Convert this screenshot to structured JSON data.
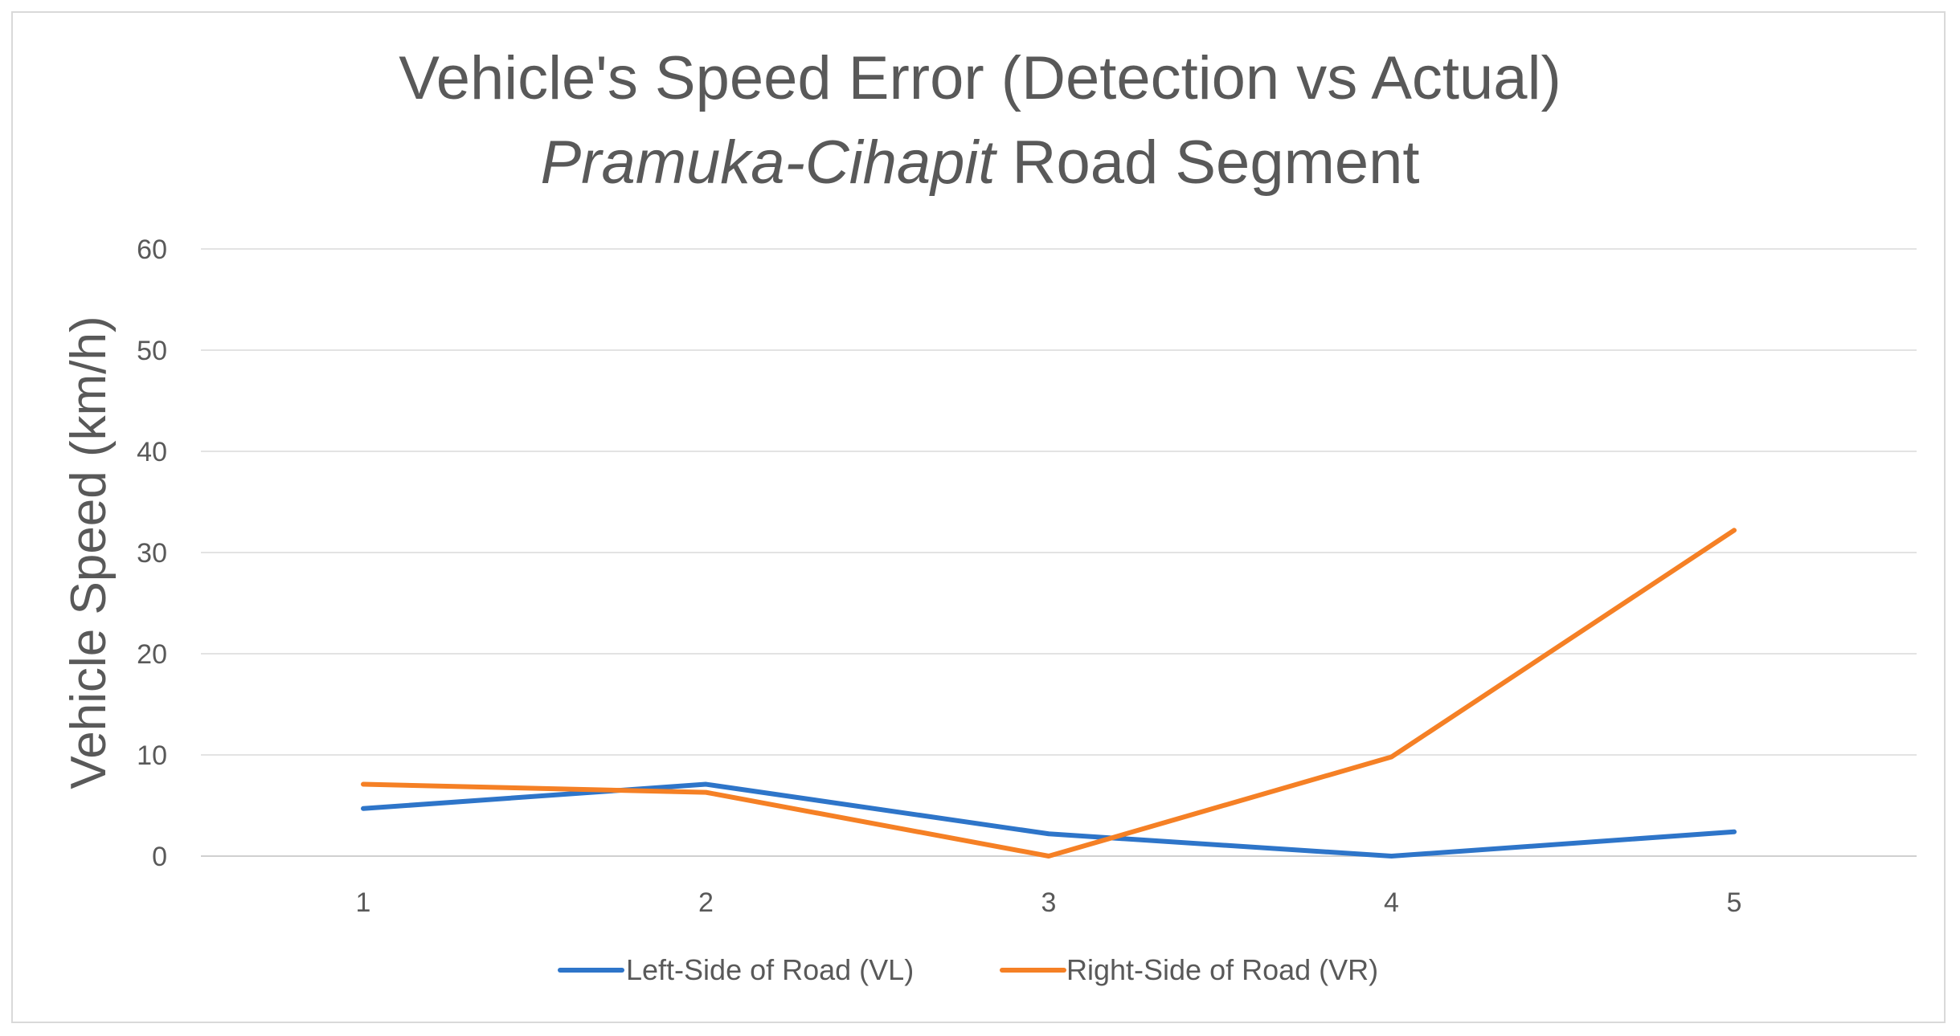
{
  "chart_data": {
    "type": "line",
    "title_line1": "Vehicle's Speed Error (Detection vs Actual)",
    "title_line2_italic": "Pramuka-Cihapit",
    "title_line2_rest": " Road Segment",
    "xlabel": "",
    "ylabel": "Vehicle Speed (km/h)",
    "categories": [
      "1",
      "2",
      "3",
      "4",
      "5"
    ],
    "yticks": [
      "0",
      "10",
      "20",
      "30",
      "40",
      "50",
      "60"
    ],
    "ylim": [
      0,
      60
    ],
    "grid": true,
    "legend_position": "bottom",
    "series": [
      {
        "name": "Left-Side of Road (VL)",
        "color": "#2e75c9",
        "values": [
          4.7,
          7.1,
          2.2,
          0,
          2.4
        ]
      },
      {
        "name": "Right-Side of Road (VR)",
        "color": "#f58025",
        "values": [
          7.1,
          6.3,
          0,
          9.8,
          32.2
        ]
      }
    ]
  }
}
